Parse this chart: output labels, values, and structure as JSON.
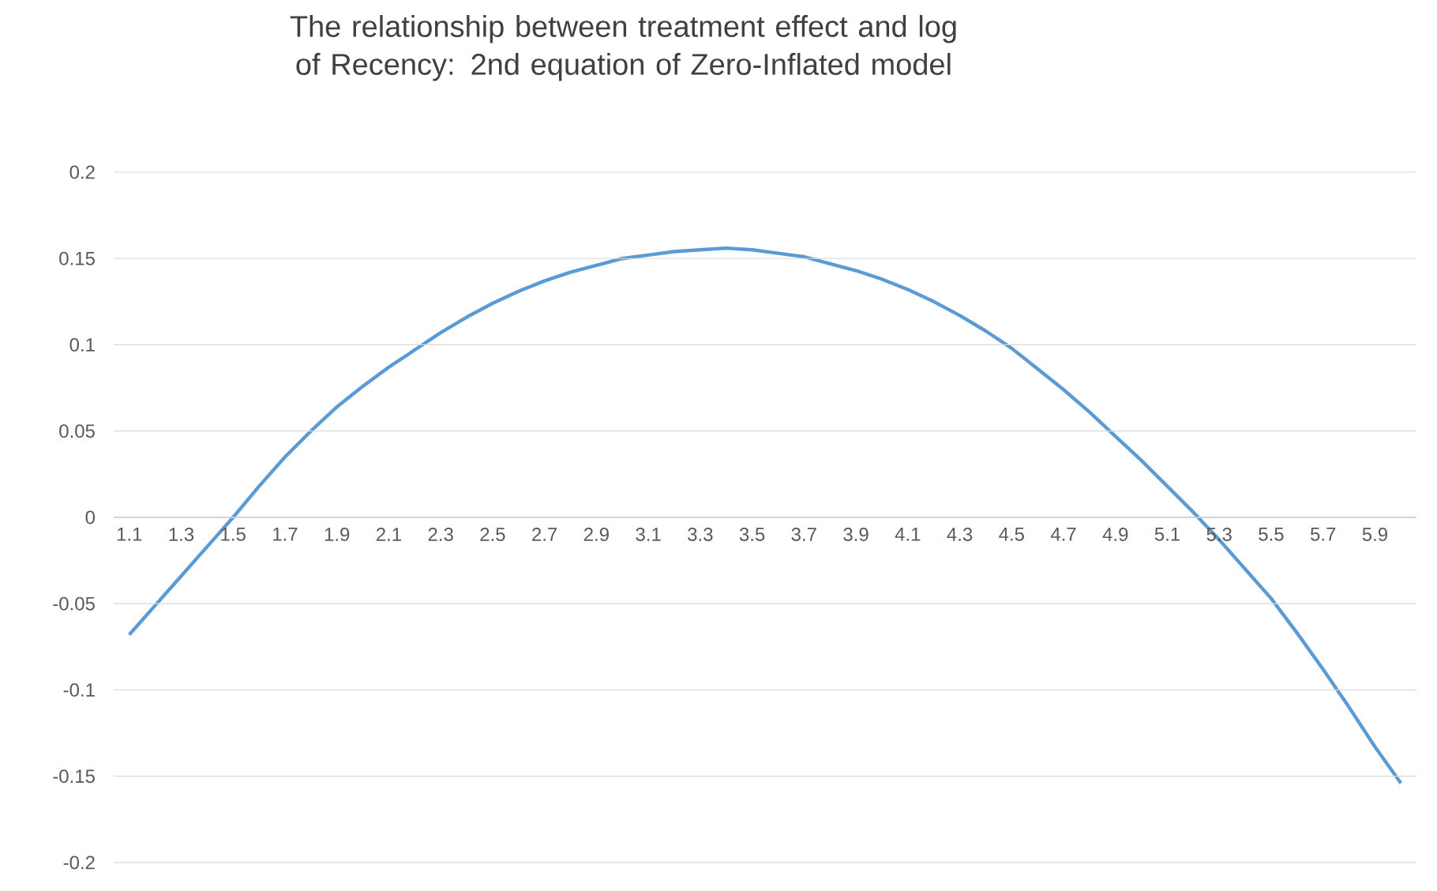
{
  "chart_data": {
    "type": "line",
    "title": "The relationship between treatment effect and log of Recency: 2nd equation of Zero-Inflated model",
    "categories": [
      "1.1",
      null,
      "1.3",
      null,
      "1.5",
      null,
      "1.7",
      null,
      "1.9",
      null,
      "2.1",
      null,
      "2.3",
      null,
      "2.5",
      null,
      "2.7",
      null,
      "2.9",
      null,
      "3.1",
      null,
      "3.3",
      null,
      "3.5",
      null,
      "3.7",
      null,
      "3.9",
      null,
      "4.1",
      null,
      "4.3",
      null,
      "4.5",
      null,
      "4.7",
      null,
      "4.9",
      null,
      "5.1",
      null,
      "5.3",
      null,
      "5.5",
      null,
      "5.7",
      null,
      "5.9",
      null
    ],
    "series": [
      {
        "color": "#5b9bd5",
        "values": [
          -0.068,
          -0.051,
          -0.034,
          -0.017,
          0.0,
          0.018,
          0.035,
          0.05,
          0.064,
          0.076,
          0.087,
          0.097,
          0.107,
          0.116,
          0.124,
          0.131,
          0.137,
          0.142,
          0.146,
          0.15,
          0.152,
          0.154,
          0.155,
          0.156,
          0.155,
          0.153,
          0.151,
          0.147,
          0.143,
          0.138,
          0.132,
          0.125,
          0.117,
          0.108,
          0.098,
          0.086,
          0.074,
          0.061,
          0.047,
          0.033,
          0.018,
          0.003,
          -0.013,
          -0.03,
          -0.047,
          -0.067,
          -0.088,
          -0.11,
          -0.133,
          -0.154
        ]
      }
    ],
    "ylim": [
      -0.2,
      0.2
    ],
    "yticks": [
      -0.2,
      -0.15,
      -0.1,
      -0.05,
      0,
      0.05,
      0.1,
      0.15,
      0.2
    ],
    "grid": "y",
    "marker": "none",
    "line_style": "solid"
  }
}
